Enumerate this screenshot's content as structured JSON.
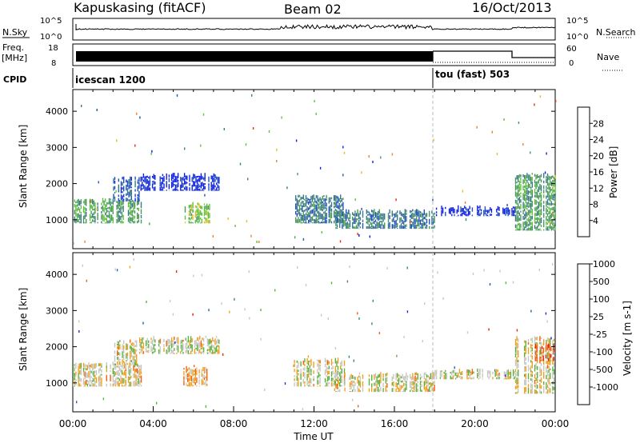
{
  "header": {
    "station": "Kapuskasing (fitACF)",
    "beam": "Beam 02",
    "date": "16/Oct/2013"
  },
  "strips": {
    "nsky_label": "N.Sky",
    "nsky_ticks": [
      "10^5",
      "10^0"
    ],
    "nsearch_label": "N.Search",
    "nsearch_ticks": [
      "10^5",
      "10^0"
    ],
    "freq_label": [
      "Freq.",
      "[MHz]"
    ],
    "freq_ticks": [
      "18",
      "8"
    ],
    "nave_label": "Nave",
    "nave_ticks": [
      "60",
      "0"
    ],
    "cpid_label": "CPID",
    "cpid_modes": [
      {
        "name": "icescan 1200",
        "start": 0
      },
      {
        "name": "tou (fast) 503",
        "start": 18
      }
    ]
  },
  "colors": {
    "power_scale": [
      "#1020e0",
      "#2050c0",
      "#3a7a8a",
      "#4a9a5a",
      "#60c040",
      "#e0c020",
      "#f08020",
      "#e03010"
    ],
    "velocity_scale": [
      "#2030c0",
      "#2860a0",
      "#3a8a6a",
      "#60b040",
      "#c8c8c0",
      "#f0a020",
      "#f06010",
      "#e02010"
    ],
    "ground_scatter": "#c8c8c0"
  },
  "chart_data": [
    {
      "type": "heatmap",
      "panel": "power",
      "ylabel": "Slant Range [km]",
      "xlabel": "",
      "xlim": [
        0,
        24
      ],
      "ylim": [
        200,
        4600
      ],
      "yticks": [
        "1000",
        "2000",
        "3000",
        "4000"
      ],
      "colorbar": {
        "label": "Power [dB]",
        "ticks": [
          "4",
          "8",
          "12",
          "16",
          "20",
          "24",
          "28"
        ]
      },
      "regions": [
        {
          "t0": 0.0,
          "t1": 3.4,
          "r0": 900,
          "r1": 1600,
          "level": 3
        },
        {
          "t0": 2.0,
          "t1": 3.3,
          "r0": 1500,
          "r1": 2200,
          "level": 1
        },
        {
          "t0": 3.3,
          "t1": 7.3,
          "r0": 1800,
          "r1": 2300,
          "level": 0
        },
        {
          "t0": 5.5,
          "t1": 6.8,
          "r0": 900,
          "r1": 1500,
          "level": 4
        },
        {
          "t0": 11.0,
          "t1": 13.5,
          "r0": 900,
          "r1": 1700,
          "level": 2
        },
        {
          "t0": 13.0,
          "t1": 18.0,
          "r0": 750,
          "r1": 1300,
          "level": 2
        },
        {
          "t0": 18.0,
          "t1": 22.0,
          "r0": 1100,
          "r1": 1400,
          "level": 0
        },
        {
          "t0": 22.0,
          "t1": 24.0,
          "r0": 700,
          "r1": 2300,
          "level": 3
        }
      ]
    },
    {
      "type": "heatmap",
      "panel": "velocity",
      "ylabel": "Slant Range [km]",
      "xlabel": "Time UT",
      "xlim": [
        0,
        24
      ],
      "ylim": [
        200,
        4600
      ],
      "yticks": [
        "1000",
        "2000",
        "3000",
        "4000"
      ],
      "xticks": [
        "00:00",
        "04:00",
        "08:00",
        "12:00",
        "16:00",
        "20:00",
        "00:00"
      ],
      "colorbar": {
        "label": "Velocity [m s-1]",
        "ticks": [
          "1000",
          "500",
          "100",
          "25",
          "-25",
          "-100",
          "-500",
          "-1000"
        ]
      },
      "regions": [
        {
          "t0": 0.0,
          "t1": 3.4,
          "r0": 900,
          "r1": 1600,
          "level": 4
        },
        {
          "t0": 2.0,
          "t1": 3.3,
          "r0": 1500,
          "r1": 2200,
          "level": 4
        },
        {
          "t0": 3.3,
          "t1": 7.3,
          "r0": 1800,
          "r1": 2300,
          "level": 4
        },
        {
          "t0": 5.5,
          "t1": 6.8,
          "r0": 900,
          "r1": 1500,
          "level": 5
        },
        {
          "t0": 11.0,
          "t1": 13.5,
          "r0": 900,
          "r1": 1700,
          "level": 4
        },
        {
          "t0": 13.0,
          "t1": 18.0,
          "r0": 750,
          "r1": 1300,
          "level": 4
        },
        {
          "t0": 18.0,
          "t1": 22.0,
          "r0": 1100,
          "r1": 1400,
          "level": 4
        },
        {
          "t0": 22.0,
          "t1": 24.0,
          "r0": 700,
          "r1": 2300,
          "level": 4
        },
        {
          "t0": 23.0,
          "t1": 24.0,
          "r0": 1600,
          "r1": 2100,
          "level": 6
        }
      ]
    }
  ]
}
